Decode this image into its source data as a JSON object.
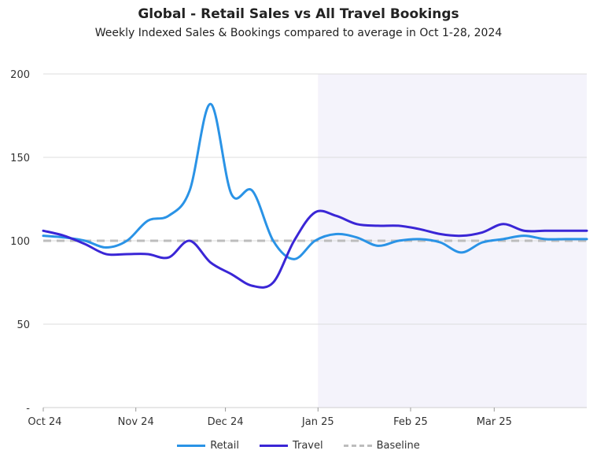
{
  "chart_data": {
    "type": "line",
    "title": "Global - Retail Sales vs All Travel Bookings",
    "subtitle": "Weekly Indexed Sales & Bookings compared to average in Oct 1-28, 2024",
    "xlabel": "",
    "ylabel": "",
    "x_ticks": [
      "Oct 24",
      "Nov 24",
      "Dec 24",
      "Jan 25",
      "Feb 25",
      "Mar 25"
    ],
    "y_ticks": [
      "200",
      "150",
      "100",
      "50",
      "-"
    ],
    "ylim": [
      0,
      200
    ],
    "x": [
      "2024-10-01",
      "2024-10-08",
      "2024-10-15",
      "2024-10-22",
      "2024-10-29",
      "2024-11-05",
      "2024-11-12",
      "2024-11-19",
      "2024-11-26",
      "2024-12-03",
      "2024-12-10",
      "2024-12-17",
      "2024-12-24",
      "2024-12-31",
      "2025-01-07",
      "2025-01-14",
      "2025-01-21",
      "2025-01-28",
      "2025-02-04",
      "2025-02-11",
      "2025-02-18",
      "2025-02-25",
      "2025-03-04",
      "2025-03-11",
      "2025-03-18",
      "2025-03-25",
      "2025-04-01"
    ],
    "shaded_region": {
      "from": "2025-01-01",
      "to": "2025-04-01",
      "color": "#f4f3fb"
    },
    "series": [
      {
        "name": "Retail",
        "color": "#2a93e6",
        "style": "solid",
        "values": [
          103,
          102,
          100,
          96,
          100,
          112,
          115,
          130,
          182,
          128,
          130,
          100,
          89,
          100,
          104,
          102,
          97,
          100,
          101,
          99,
          93,
          99,
          101,
          103,
          101,
          101,
          101
        ]
      },
      {
        "name": "Travel",
        "color": "#3a26d6",
        "style": "solid",
        "values": [
          106,
          103,
          98,
          92,
          92,
          92,
          90,
          100,
          87,
          80,
          73,
          75,
          100,
          117,
          115,
          110,
          109,
          109,
          107,
          104,
          103,
          105,
          110,
          106,
          106,
          106,
          106
        ]
      },
      {
        "name": "Baseline",
        "color": "#bdbdbd",
        "style": "dashed",
        "values": [
          100,
          100,
          100,
          100,
          100,
          100,
          100,
          100,
          100,
          100,
          100,
          100,
          100,
          100,
          100,
          100,
          100,
          100,
          100,
          100,
          100,
          100,
          100,
          100,
          100,
          100,
          100
        ]
      }
    ],
    "grid": true,
    "legend_position": "bottom"
  }
}
